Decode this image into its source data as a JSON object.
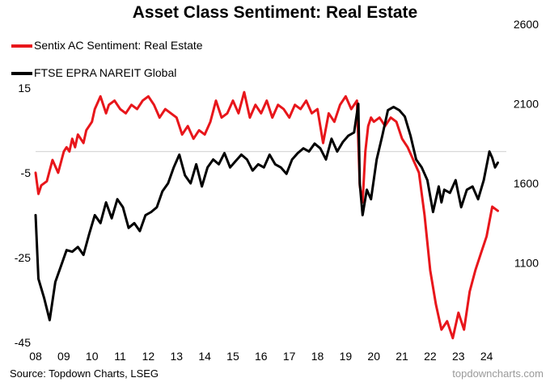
{
  "title": "Asset Class Sentiment: Real Estate",
  "source": "Source: Topdown Charts, LSEG",
  "watermark": "topdowncharts.com",
  "colors": {
    "sentix": "#e8161b",
    "ftse": "#000000",
    "zero_line": "#d9d9d9"
  },
  "chart_data": {
    "type": "line",
    "title": "Asset Class Sentiment: Real Estate",
    "x_ticks": [
      "08",
      "09",
      "10",
      "11",
      "12",
      "13",
      "14",
      "15",
      "16",
      "17",
      "18",
      "19",
      "20",
      "21",
      "22",
      "23",
      "24"
    ],
    "y_left": {
      "ticks": [
        "15",
        "-5",
        "-25",
        "-45"
      ],
      "range": [
        -45,
        30
      ]
    },
    "y_right": {
      "ticks": [
        "1100",
        "1600",
        "2100",
        "2600"
      ],
      "range": [
        600,
        2600
      ]
    },
    "grid": false,
    "legend_position": "top-left",
    "series": [
      {
        "name": "Sentix AC Sentiment: Real Estate",
        "axis": "left",
        "color": "#e8161b",
        "x": [
          2008.0,
          2008.1,
          2008.2,
          2008.4,
          2008.6,
          2008.8,
          2009.0,
          2009.1,
          2009.2,
          2009.3,
          2009.4,
          2009.5,
          2009.7,
          2009.8,
          2010.0,
          2010.1,
          2010.3,
          2010.5,
          2010.6,
          2010.8,
          2011.0,
          2011.2,
          2011.4,
          2011.6,
          2011.8,
          2012.0,
          2012.2,
          2012.4,
          2012.6,
          2012.8,
          2013.0,
          2013.2,
          2013.4,
          2013.6,
          2013.8,
          2014.0,
          2014.2,
          2014.4,
          2014.6,
          2014.8,
          2015.0,
          2015.2,
          2015.4,
          2015.6,
          2015.8,
          2016.0,
          2016.2,
          2016.4,
          2016.6,
          2016.8,
          2017.0,
          2017.2,
          2017.4,
          2017.6,
          2017.8,
          2018.0,
          2018.2,
          2018.4,
          2018.6,
          2018.8,
          2019.0,
          2019.2,
          2019.4,
          2019.5,
          2019.6,
          2019.7,
          2019.8,
          2019.9,
          2020.0,
          2020.2,
          2020.4,
          2020.6,
          2020.8,
          2021.0,
          2021.2,
          2021.4,
          2021.6,
          2021.8,
          2022.0,
          2022.2,
          2022.4,
          2022.6,
          2022.8,
          2023.0,
          2023.2,
          2023.4,
          2023.6,
          2023.8,
          2024.0,
          2024.2,
          2024.4
        ],
        "y": [
          -5,
          -10,
          -8,
          -7,
          -2,
          -5,
          0,
          1,
          0,
          3,
          1,
          4,
          2,
          5,
          7,
          10,
          13,
          9,
          11,
          12,
          10,
          9,
          11,
          10,
          12,
          13,
          11,
          8,
          10,
          9,
          8,
          4,
          6,
          3,
          5,
          4,
          7,
          12,
          8,
          9,
          12,
          9,
          14,
          8,
          11,
          9,
          12,
          8,
          11,
          10,
          8,
          11,
          10,
          12,
          9,
          10,
          2,
          9,
          7,
          11,
          13,
          10,
          12,
          -8,
          -12,
          0,
          6,
          8,
          7,
          8,
          6,
          8,
          7,
          3,
          1,
          -2,
          -5,
          -15,
          -28,
          -36,
          -42,
          -40,
          -44,
          -38,
          -42,
          -33,
          -28,
          -24,
          -20,
          -13,
          -14
        ],
        "end_value": -14
      },
      {
        "name": "FTSE EPRA NAREIT Global",
        "axis": "right",
        "color": "#000000",
        "x": [
          2008.0,
          2008.1,
          2008.3,
          2008.5,
          2008.7,
          2008.9,
          2009.1,
          2009.3,
          2009.5,
          2009.7,
          2009.9,
          2010.1,
          2010.3,
          2010.5,
          2010.7,
          2010.9,
          2011.1,
          2011.3,
          2011.5,
          2011.7,
          2011.9,
          2012.1,
          2012.3,
          2012.5,
          2012.7,
          2012.9,
          2013.1,
          2013.3,
          2013.5,
          2013.7,
          2013.9,
          2014.1,
          2014.3,
          2014.5,
          2014.7,
          2014.9,
          2015.1,
          2015.3,
          2015.5,
          2015.7,
          2015.9,
          2016.1,
          2016.3,
          2016.5,
          2016.7,
          2016.9,
          2017.1,
          2017.3,
          2017.5,
          2017.7,
          2017.9,
          2018.1,
          2018.3,
          2018.5,
          2018.7,
          2018.9,
          2019.1,
          2019.3,
          2019.45,
          2019.5,
          2019.6,
          2019.75,
          2019.9,
          2020.1,
          2020.3,
          2020.5,
          2020.7,
          2020.9,
          2021.1,
          2021.3,
          2021.5,
          2021.7,
          2021.9,
          2022.1,
          2022.3,
          2022.4,
          2022.5,
          2022.7,
          2022.9,
          2023.1,
          2023.3,
          2023.5,
          2023.7,
          2023.9,
          2024.1,
          2024.2,
          2024.3,
          2024.4
        ],
        "y": [
          1400,
          1000,
          880,
          740,
          980,
          1080,
          1180,
          1170,
          1200,
          1150,
          1280,
          1400,
          1350,
          1480,
          1380,
          1500,
          1450,
          1320,
          1350,
          1300,
          1400,
          1420,
          1450,
          1550,
          1600,
          1700,
          1780,
          1650,
          1600,
          1720,
          1580,
          1700,
          1750,
          1720,
          1790,
          1700,
          1740,
          1780,
          1750,
          1680,
          1720,
          1700,
          1780,
          1720,
          1700,
          1660,
          1750,
          1790,
          1820,
          1800,
          1850,
          1820,
          1750,
          1880,
          1800,
          1860,
          1900,
          1920,
          2100,
          1600,
          1400,
          1560,
          1500,
          1750,
          1900,
          2060,
          2080,
          2060,
          2020,
          1900,
          1750,
          1700,
          1620,
          1420,
          1580,
          1480,
          1560,
          1540,
          1620,
          1450,
          1560,
          1580,
          1500,
          1620,
          1800,
          1760,
          1700,
          1730
        ],
        "end_value": 1730
      }
    ]
  }
}
